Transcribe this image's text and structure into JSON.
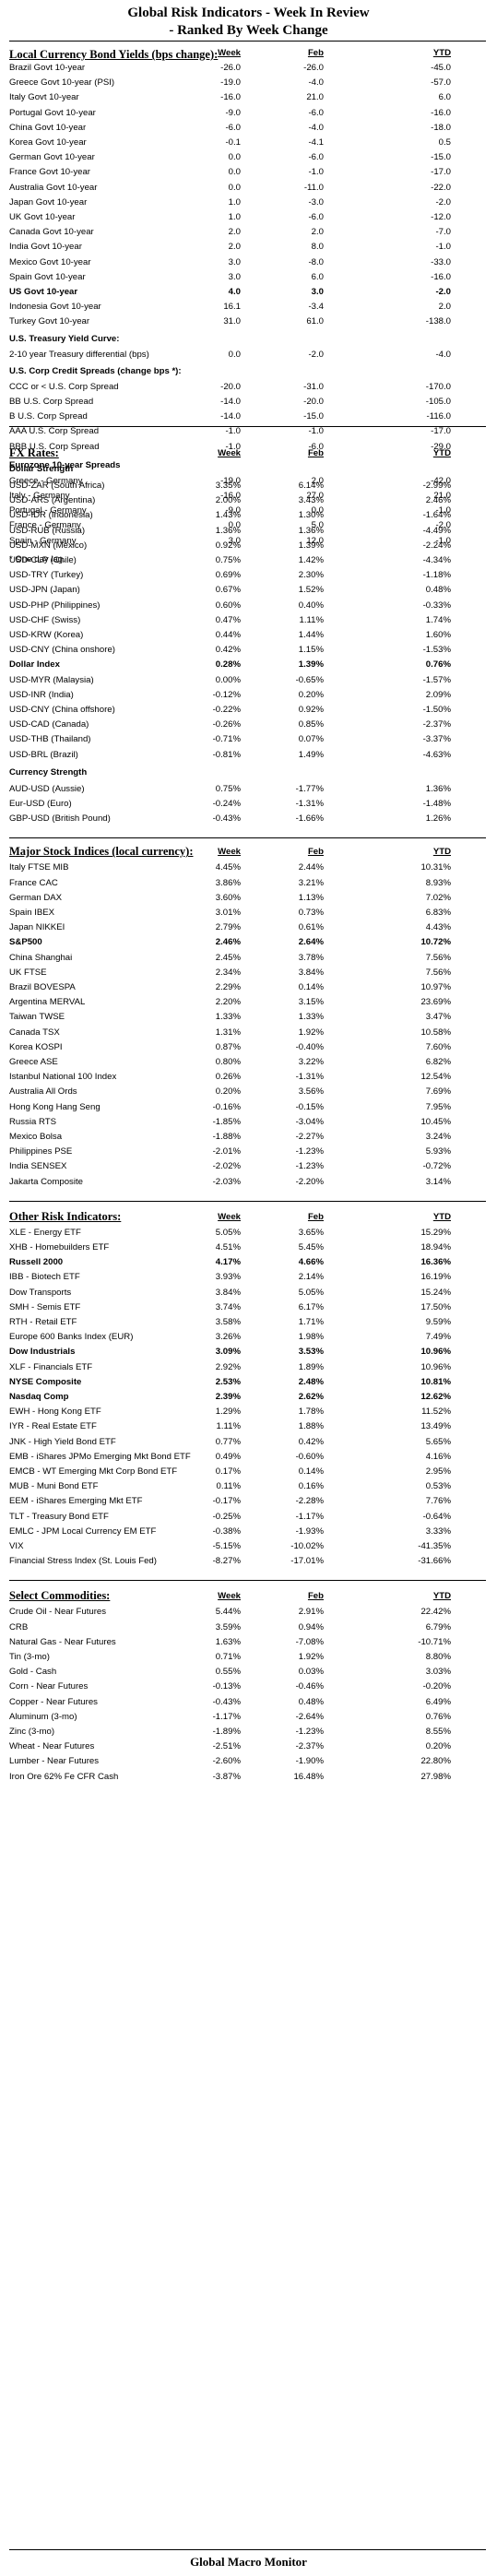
{
  "header": {
    "title_line1": "Global Risk Indicators - Week In Review",
    "title_line2": "- Ranked By Week Change"
  },
  "columns": {
    "week": "Week",
    "feb": "Feb",
    "ytd": "YTD"
  },
  "bonds": {
    "heading": "Local Currency Bond Yields (bps change):",
    "rows": [
      {
        "label": "Brazil Govt 10-year",
        "week": "-26.0",
        "feb": "-26.0",
        "ytd": "-45.0"
      },
      {
        "label": "Greece Govt 10-year (PSI)",
        "week": "-19.0",
        "feb": "-4.0",
        "ytd": "-57.0"
      },
      {
        "label": "Italy Govt 10-year",
        "week": "-16.0",
        "feb": "21.0",
        "ytd": "6.0"
      },
      {
        "label": "Portugal Govt 10-year",
        "week": "-9.0",
        "feb": "-6.0",
        "ytd": "-16.0"
      },
      {
        "label": "China Govt 10-year",
        "week": "-6.0",
        "feb": "-4.0",
        "ytd": "-18.0"
      },
      {
        "label": "Korea Govt 10-year",
        "week": "-0.1",
        "feb": "-4.1",
        "ytd": "0.5"
      },
      {
        "label": "German Govt 10-year",
        "week": "0.0",
        "feb": "-6.0",
        "ytd": "-15.0"
      },
      {
        "label": "France Govt 10-year",
        "week": "0.0",
        "feb": "-1.0",
        "ytd": "-17.0"
      },
      {
        "label": "Australia Govt 10-year",
        "week": "0.0",
        "feb": "-11.0",
        "ytd": "-22.0"
      },
      {
        "label": "Japan Govt 10-year",
        "week": "1.0",
        "feb": "-3.0",
        "ytd": "-2.0"
      },
      {
        "label": "UK Govt 10-year",
        "week": "1.0",
        "feb": "-6.0",
        "ytd": "-12.0"
      },
      {
        "label": "Canada Govt 10-year",
        "week": "2.0",
        "feb": "2.0",
        "ytd": "-7.0"
      },
      {
        "label": "India Govt 10-year",
        "week": "2.0",
        "feb": "8.0",
        "ytd": "-1.0"
      },
      {
        "label": "Mexico Govt 10-year",
        "week": "3.0",
        "feb": "-8.0",
        "ytd": "-33.0"
      },
      {
        "label": "Spain Govt 10-year",
        "week": "3.0",
        "feb": "6.0",
        "ytd": "-16.0"
      },
      {
        "label": "US Govt 10-year",
        "week": "4.0",
        "feb": "3.0",
        "ytd": "-2.0",
        "bold": true
      },
      {
        "label": "Indonesia Govt 10-year",
        "week": "16.1",
        "feb": "-3.4",
        "ytd": "2.0"
      },
      {
        "label": "Turkey Govt 10-year",
        "week": "31.0",
        "feb": "61.0",
        "ytd": "-138.0"
      }
    ]
  },
  "curve": {
    "heading": "U.S. Treasury Yield Curve:",
    "rows": [
      {
        "label": "2-10 year Treasury differential (bps)",
        "week": "0.0",
        "feb": "-2.0",
        "ytd": "-4.0"
      }
    ]
  },
  "credit": {
    "heading": "U.S. Corp Credit Spreads (change bps *):",
    "rows": [
      {
        "label": "CCC or < U.S. Corp Spread",
        "week": "-20.0",
        "feb": "-31.0",
        "ytd": "-170.0"
      },
      {
        "label": "BB U.S. Corp Spread",
        "week": "-14.0",
        "feb": "-20.0",
        "ytd": "-105.0"
      },
      {
        "label": "B U.S. Corp Spread",
        "week": "-14.0",
        "feb": "-15.0",
        "ytd": "-116.0"
      },
      {
        "label": "AAA U.S. Corp Spread",
        "week": "-1.0",
        "feb": "-1.0",
        "ytd": "-17.0"
      },
      {
        "label": "BBB U.S. Corp Spread",
        "week": "-1.0",
        "feb": "-6.0",
        "ytd": "-29.0"
      }
    ]
  },
  "eurozone": {
    "heading": "Eurozone 10-year Spreads",
    "rows": [
      {
        "label": "Greece - Germany",
        "week": "-19.0",
        "feb": "2.0",
        "ytd": "-42.0"
      },
      {
        "label": "Italy - Germany",
        "week": "-16.0",
        "feb": "27.0",
        "ytd": "21.0"
      },
      {
        "label": "Portugal - Germany",
        "week": "-9.0",
        "feb": "0.0",
        "ytd": "-1.0"
      },
      {
        "label": "France - Germany",
        "week": "0.0",
        "feb": "5.0",
        "ytd": "-2.0"
      },
      {
        "label": "Spain - Germany",
        "week": "3.0",
        "feb": "12.0",
        "ytd": "-1.0"
      }
    ],
    "note": "* One day lag."
  },
  "fx": {
    "heading": "FX Rates:",
    "dollar_heading": "Dollar Strength",
    "dollar_rows": [
      {
        "label": "USD-ZAR (South Africa)",
        "week": "3.35%",
        "feb": "6.14%",
        "ytd": "-2.99%"
      },
      {
        "label": "USD-ARS (Argentina)",
        "week": "2.00%",
        "feb": "3.43%",
        "ytd": "2.46%"
      },
      {
        "label": "USD-IDR (Indonesia)",
        "week": "1.43%",
        "feb": "1.30%",
        "ytd": "-1.64%"
      },
      {
        "label": "USD-RUB (Russia)",
        "week": "1.36%",
        "feb": "1.36%",
        "ytd": "-4.49%"
      },
      {
        "label": "USD-MXN  (Mexico)",
        "week": "0.92%",
        "feb": "1.39%",
        "ytd": "-2.24%"
      },
      {
        "label": "USD-CLP (Chile)",
        "week": "0.75%",
        "feb": "1.42%",
        "ytd": "-4.34%"
      },
      {
        "label": "USD-TRY (Turkey)",
        "week": "0.69%",
        "feb": "2.30%",
        "ytd": "-1.18%"
      },
      {
        "label": "USD-JPN (Japan)",
        "week": "0.67%",
        "feb": "1.52%",
        "ytd": "0.48%"
      },
      {
        "label": "USD-PHP (Philippines)",
        "week": "0.60%",
        "feb": "0.40%",
        "ytd": "-0.33%"
      },
      {
        "label": "USD-CHF (Swiss)",
        "week": "0.47%",
        "feb": "1.11%",
        "ytd": "1.74%"
      },
      {
        "label": "USD-KRW (Korea)",
        "week": "0.44%",
        "feb": "1.44%",
        "ytd": "1.60%"
      },
      {
        "label": "USD-CNY (China onshore)",
        "week": "0.42%",
        "feb": "1.15%",
        "ytd": "-1.53%"
      },
      {
        "label": "Dollar Index",
        "week": "0.28%",
        "feb": "1.39%",
        "ytd": "0.76%",
        "bold": true
      },
      {
        "label": "USD-MYR (Malaysia)",
        "week": "0.00%",
        "feb": "-0.65%",
        "ytd": "-1.57%"
      },
      {
        "label": "USD-INR (India)",
        "week": "-0.12%",
        "feb": "0.20%",
        "ytd": "2.09%"
      },
      {
        "label": "USD-CNY (China offshore)",
        "week": "-0.22%",
        "feb": "0.92%",
        "ytd": "-1.50%"
      },
      {
        "label": "USD-CAD (Canada)",
        "week": "-0.26%",
        "feb": "0.85%",
        "ytd": "-2.37%"
      },
      {
        "label": "USD-THB  (Thailand)",
        "week": "-0.71%",
        "feb": "0.07%",
        "ytd": "-3.37%"
      },
      {
        "label": "USD-BRL (Brazil)",
        "week": "-0.81%",
        "feb": "1.49%",
        "ytd": "-4.63%"
      }
    ],
    "currency_heading": "Currency Strength",
    "currency_rows": [
      {
        "label": "AUD-USD (Aussie)",
        "week": "0.75%",
        "feb": "-1.77%",
        "ytd": "1.36%"
      },
      {
        "label": "Eur-USD (Euro)",
        "week": "-0.24%",
        "feb": "-1.31%",
        "ytd": "-1.48%"
      },
      {
        "label": "GBP-USD (British Pound)",
        "week": "-0.43%",
        "feb": "-1.66%",
        "ytd": "1.26%"
      }
    ]
  },
  "stocks": {
    "heading": "Major Stock Indices (local currency):",
    "rows": [
      {
        "label": "Italy FTSE MIB",
        "week": "4.45%",
        "feb": "2.44%",
        "ytd": "10.31%"
      },
      {
        "label": "France CAC",
        "week": "3.86%",
        "feb": "3.21%",
        "ytd": "8.93%"
      },
      {
        "label": "German DAX",
        "week": "3.60%",
        "feb": "1.13%",
        "ytd": "7.02%"
      },
      {
        "label": "Spain IBEX",
        "week": "3.01%",
        "feb": "0.73%",
        "ytd": "6.83%"
      },
      {
        "label": "Japan NIKKEI",
        "week": "2.79%",
        "feb": "0.61%",
        "ytd": "4.43%"
      },
      {
        "label": "S&P500",
        "week": "2.46%",
        "feb": "2.64%",
        "ytd": "10.72%",
        "bold": true
      },
      {
        "label": "China Shanghai",
        "week": "2.45%",
        "feb": "3.78%",
        "ytd": "7.56%"
      },
      {
        "label": "UK FTSE",
        "week": "2.34%",
        "feb": "3.84%",
        "ytd": "7.56%"
      },
      {
        "label": "Brazil BOVESPA",
        "week": "2.29%",
        "feb": "0.14%",
        "ytd": "10.97%"
      },
      {
        "label": "Argentina MERVAL",
        "week": "2.20%",
        "feb": "3.15%",
        "ytd": "23.69%"
      },
      {
        "label": "Taiwan  TWSE",
        "week": "1.33%",
        "feb": "1.33%",
        "ytd": "3.47%"
      },
      {
        "label": "Canada TSX",
        "week": "1.31%",
        "feb": "1.92%",
        "ytd": "10.58%"
      },
      {
        "label": "Korea KOSPI",
        "week": "0.87%",
        "feb": "-0.40%",
        "ytd": "7.60%"
      },
      {
        "label": "Greece ASE",
        "week": "0.80%",
        "feb": "3.22%",
        "ytd": "6.82%"
      },
      {
        "label": "Istanbul National 100 Index",
        "week": "0.26%",
        "feb": "-1.31%",
        "ytd": "12.54%"
      },
      {
        "label": "Australia All Ords",
        "week": "0.20%",
        "feb": "3.56%",
        "ytd": "7.69%"
      },
      {
        "label": "Hong Kong Hang Seng",
        "week": "-0.16%",
        "feb": "-0.15%",
        "ytd": "7.95%"
      },
      {
        "label": "Russia RTS",
        "week": "-1.85%",
        "feb": "-3.04%",
        "ytd": "10.45%"
      },
      {
        "label": "Mexico Bolsa",
        "week": "-1.88%",
        "feb": "-2.27%",
        "ytd": "3.24%"
      },
      {
        "label": "Philippines PSE",
        "week": "-2.01%",
        "feb": "-1.23%",
        "ytd": "5.93%"
      },
      {
        "label": "India SENSEX",
        "week": "-2.02%",
        "feb": "-1.23%",
        "ytd": "-0.72%"
      },
      {
        "label": "Jakarta Composite",
        "week": "-2.03%",
        "feb": "-2.20%",
        "ytd": "3.14%"
      }
    ]
  },
  "risk": {
    "heading": "Other Risk Indicators:",
    "rows": [
      {
        "label": "XLE - Energy ETF",
        "week": "5.05%",
        "feb": "3.65%",
        "ytd": "15.29%"
      },
      {
        "label": "XHB - Homebuilders ETF",
        "week": "4.51%",
        "feb": "5.45%",
        "ytd": "18.94%"
      },
      {
        "label": "Russell 2000",
        "week": "4.17%",
        "feb": "4.66%",
        "ytd": "16.36%",
        "bold": true
      },
      {
        "label": "IBB - Biotech ETF",
        "week": "3.93%",
        "feb": "2.14%",
        "ytd": "16.19%"
      },
      {
        "label": "Dow Transports",
        "week": "3.84%",
        "feb": "5.05%",
        "ytd": "15.24%"
      },
      {
        "label": "SMH - Semis ETF",
        "week": "3.74%",
        "feb": "6.17%",
        "ytd": "17.50%"
      },
      {
        "label": "RTH - Retail ETF",
        "week": "3.58%",
        "feb": "1.71%",
        "ytd": "9.59%"
      },
      {
        "label": "Europe 600 Banks Index (EUR)",
        "week": "3.26%",
        "feb": "1.98%",
        "ytd": "7.49%"
      },
      {
        "label": "Dow Industrials",
        "week": "3.09%",
        "feb": "3.53%",
        "ytd": "10.96%",
        "bold": true
      },
      {
        "label": "XLF - Financials ETF",
        "week": "2.92%",
        "feb": "1.89%",
        "ytd": "10.96%"
      },
      {
        "label": "NYSE Composite",
        "week": "2.53%",
        "feb": "2.48%",
        "ytd": "10.81%",
        "bold": true
      },
      {
        "label": "Nasdaq Comp",
        "week": "2.39%",
        "feb": "2.62%",
        "ytd": "12.62%",
        "bold": true
      },
      {
        "label": "EWH - Hong Kong ETF",
        "week": "1.29%",
        "feb": "1.78%",
        "ytd": "11.52%"
      },
      {
        "label": "IYR - Real Estate ETF",
        "week": "1.11%",
        "feb": "1.88%",
        "ytd": "13.49%"
      },
      {
        "label": "JNK - High Yield Bond ETF",
        "week": "0.77%",
        "feb": "0.42%",
        "ytd": "5.65%"
      },
      {
        "label": "EMB - iShares JPMo Emerging Mkt Bond ETF",
        "week": "0.49%",
        "feb": "-0.60%",
        "ytd": "4.16%"
      },
      {
        "label": "EMCB - WT Emerging Mkt Corp Bond ETF",
        "week": "0.17%",
        "feb": "0.14%",
        "ytd": "2.95%"
      },
      {
        "label": "MUB - Muni Bond ETF",
        "week": "0.11%",
        "feb": "0.16%",
        "ytd": "0.53%"
      },
      {
        "label": "EEM - iShares Emerging Mkt ETF",
        "week": "-0.17%",
        "feb": "-2.28%",
        "ytd": "7.76%"
      },
      {
        "label": "TLT - Treasury Bond ETF",
        "week": "-0.25%",
        "feb": "-1.17%",
        "ytd": "-0.64%"
      },
      {
        "label": "EMLC - JPM Local Currency EM ETF",
        "week": "-0.38%",
        "feb": "-1.93%",
        "ytd": "3.33%"
      },
      {
        "label": "VIX",
        "week": "-5.15%",
        "feb": "-10.02%",
        "ytd": "-41.35%"
      },
      {
        "label": "Financial Stress Index (St. Louis Fed)",
        "week": "-8.27%",
        "feb": "-17.01%",
        "ytd": "-31.66%"
      }
    ]
  },
  "commodities": {
    "heading": "Select Commodities:",
    "rows": [
      {
        "label": "Crude Oil - Near Futures",
        "week": "5.44%",
        "feb": "2.91%",
        "ytd": "22.42%"
      },
      {
        "label": "CRB",
        "week": "3.59%",
        "feb": "0.94%",
        "ytd": "6.79%"
      },
      {
        "label": "Natural Gas - Near Futures",
        "week": "1.63%",
        "feb": "-7.08%",
        "ytd": "-10.71%"
      },
      {
        "label": "Tin (3-mo)",
        "week": "0.71%",
        "feb": "1.92%",
        "ytd": "8.80%"
      },
      {
        "label": "Gold - Cash",
        "week": "0.55%",
        "feb": "0.03%",
        "ytd": "3.03%"
      },
      {
        "label": "Corn - Near Futures",
        "week": "-0.13%",
        "feb": "-0.46%",
        "ytd": "-0.20%"
      },
      {
        "label": "Copper - Near Futures",
        "week": "-0.43%",
        "feb": "0.48%",
        "ytd": "6.49%"
      },
      {
        "label": "Aluminum (3-mo)",
        "week": "-1.17%",
        "feb": "-2.64%",
        "ytd": "0.76%"
      },
      {
        "label": "Zinc (3-mo)",
        "week": "-1.89%",
        "feb": "-1.23%",
        "ytd": "8.55%"
      },
      {
        "label": "Wheat - Near Futures",
        "week": "-2.51%",
        "feb": "-2.37%",
        "ytd": "0.20%"
      },
      {
        "label": "Lumber - Near Futures",
        "week": "-2.60%",
        "feb": "-1.90%",
        "ytd": "22.80%"
      },
      {
        "label": "Iron Ore 62% Fe CFR Cash",
        "week": "-3.87%",
        "feb": "16.48%",
        "ytd": "27.98%"
      }
    ]
  },
  "footer": {
    "text": "Global Macro Monitor"
  }
}
